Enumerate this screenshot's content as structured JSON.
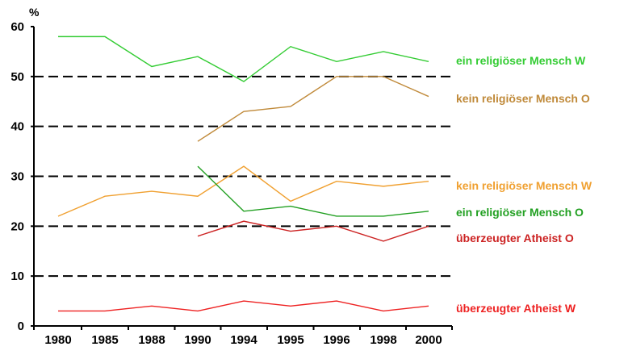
{
  "chart_data": {
    "type": "line",
    "y_unit": "%",
    "categories": [
      "1980",
      "1985",
      "1988",
      "1990",
      "1994",
      "1995",
      "1996",
      "1998",
      "2000"
    ],
    "yticks": [
      0,
      10,
      20,
      30,
      40,
      50,
      60
    ],
    "ylim": [
      0,
      60
    ],
    "grid": "dashed horizontal lines at 10, 20, 30, 40, 50",
    "legend": "labels at right end of each line",
    "series": [
      {
        "name": "ein religiöser Mensch W",
        "color": "#33cc33",
        "values": [
          58,
          58,
          52,
          54,
          49,
          56,
          53,
          55,
          53
        ]
      },
      {
        "name": "kein religiöser Mensch O",
        "color": "#c08a3a",
        "values": [
          null,
          null,
          null,
          37,
          43,
          44,
          50,
          50,
          46
        ]
      },
      {
        "name": "kein religiöser Mensch W",
        "color": "#f0a030",
        "values": [
          22,
          26,
          27,
          26,
          32,
          25,
          29,
          28,
          29
        ]
      },
      {
        "name": "ein religiöser Mensch O",
        "color": "#22a022",
        "values": [
          null,
          null,
          null,
          32,
          23,
          24,
          22,
          22,
          23
        ]
      },
      {
        "name": "überzeugter Atheist O",
        "color": "#cc2222",
        "values": [
          null,
          null,
          null,
          18,
          21,
          19,
          20,
          17,
          20
        ]
      },
      {
        "name": "überzeugter Atheist W",
        "color": "#ee2222",
        "values": [
          3,
          3,
          4,
          3,
          5,
          4,
          5,
          3,
          4
        ]
      }
    ]
  }
}
